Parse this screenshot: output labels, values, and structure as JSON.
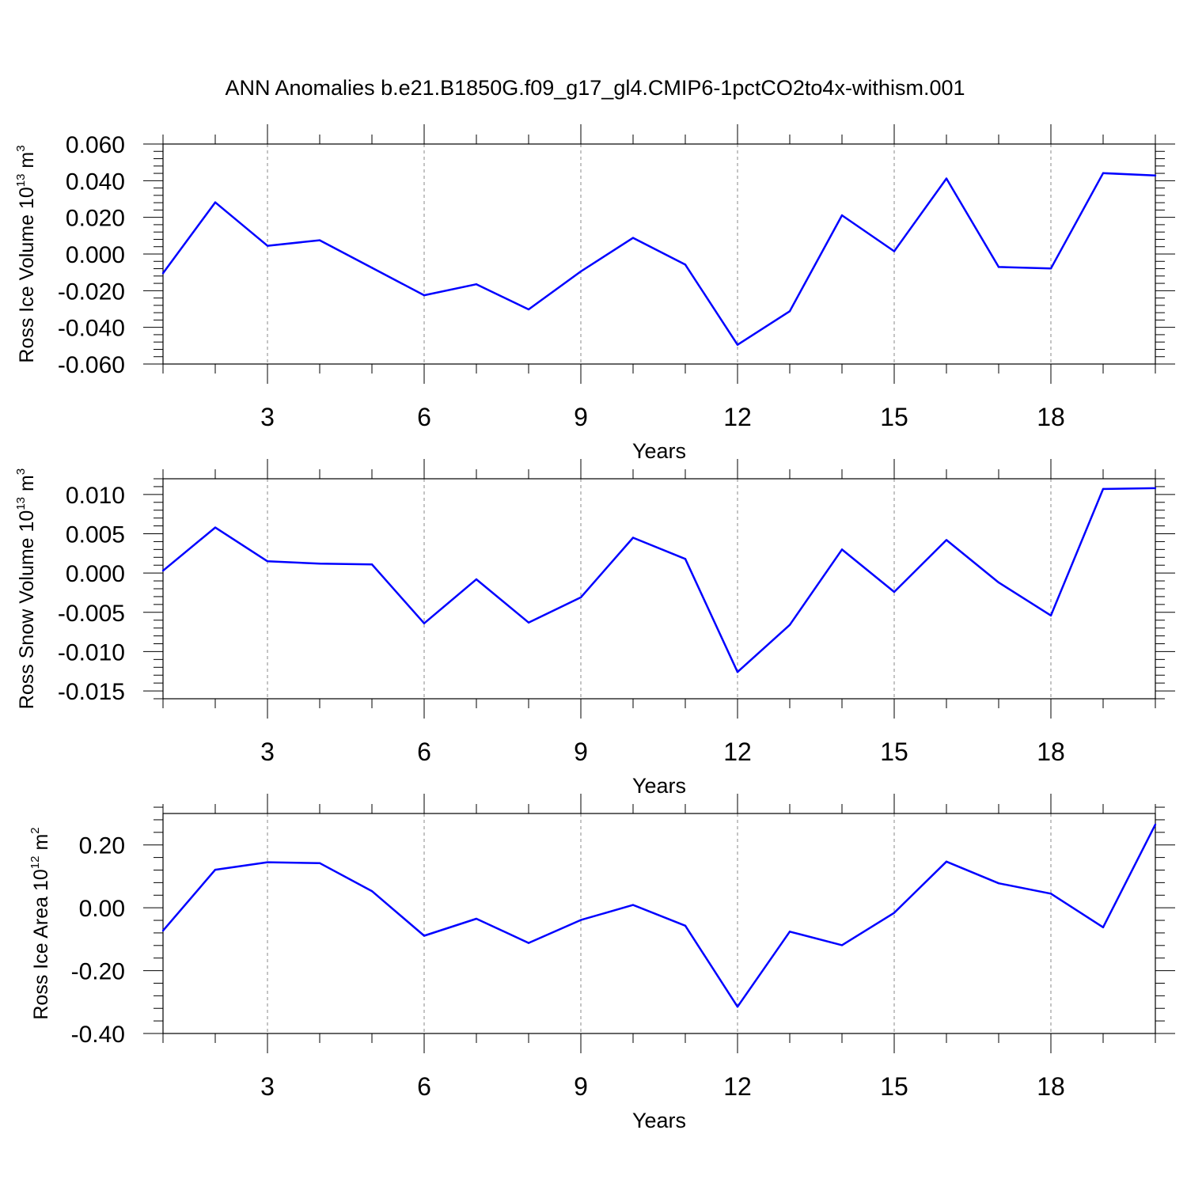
{
  "title": "ANN Anomalies b.e21.B1850G.f09_g17_gl4.CMIP6-1pctCO2to4x-withism.001",
  "colors": {
    "line": "#0000ff",
    "axis": "#000000",
    "grid": "#888888"
  },
  "chart_data": [
    {
      "type": "line",
      "ylabel": {
        "main": "Ross Ice Volume 10",
        "exponent": "13",
        "unit": "m",
        "unit_exponent": "3"
      },
      "xlabel": "Years",
      "xlim": [
        1,
        20
      ],
      "ylim": [
        -0.06,
        0.06
      ],
      "grid": "vertical dashed at major ticks",
      "yticks": [
        {
          "value": 0.06,
          "label": "0.060"
        },
        {
          "value": 0.04,
          "label": "0.040"
        },
        {
          "value": 0.02,
          "label": "0.020"
        },
        {
          "value": 0.0,
          "label": "0.000"
        },
        {
          "value": -0.02,
          "label": "-0.020"
        },
        {
          "value": -0.04,
          "label": "-0.040"
        },
        {
          "value": -0.06,
          "label": "-0.060"
        }
      ],
      "xticks": [
        3,
        6,
        9,
        12,
        15,
        18
      ],
      "series": [
        {
          "x": [
            1,
            2,
            3,
            4,
            5,
            6,
            7,
            8,
            9,
            10,
            11,
            12,
            13,
            14,
            15,
            16,
            17,
            18,
            19,
            20
          ],
          "values": [
            -0.0105,
            0.0282,
            0.0045,
            0.0075,
            -0.0075,
            -0.0225,
            -0.0165,
            -0.0302,
            -0.0095,
            0.0088,
            -0.0058,
            -0.0495,
            -0.0312,
            0.0211,
            0.0015,
            0.0412,
            -0.0071,
            -0.0079,
            0.0441,
            0.0428
          ]
        }
      ]
    },
    {
      "type": "line",
      "ylabel": {
        "main": "Ross Snow Volume 10",
        "exponent": "13",
        "unit": "m",
        "unit_exponent": "3"
      },
      "xlabel": "Years",
      "xlim": [
        1,
        20
      ],
      "ylim": [
        -0.016,
        0.012
      ],
      "grid": "vertical dashed at major ticks",
      "yticks": [
        {
          "value": 0.01,
          "label": "0.010"
        },
        {
          "value": 0.005,
          "label": "0.005"
        },
        {
          "value": 0.0,
          "label": "0.000"
        },
        {
          "value": -0.005,
          "label": "-0.005"
        },
        {
          "value": -0.01,
          "label": "-0.010"
        },
        {
          "value": -0.015,
          "label": "-0.015"
        }
      ],
      "xticks": [
        3,
        6,
        9,
        12,
        15,
        18
      ],
      "series": [
        {
          "x": [
            1,
            2,
            3,
            4,
            5,
            6,
            7,
            8,
            9,
            10,
            11,
            12,
            13,
            14,
            15,
            16,
            17,
            18,
            19,
            20
          ],
          "values": [
            0.0003,
            0.0058,
            0.0015,
            0.0012,
            0.0011,
            -0.0064,
            -0.0008,
            -0.0063,
            -0.0031,
            0.0045,
            0.0018,
            -0.0126,
            -0.0066,
            0.003,
            -0.0024,
            0.0042,
            -0.0012,
            -0.0054,
            0.0107,
            0.0108
          ]
        }
      ]
    },
    {
      "type": "line",
      "ylabel": {
        "main": "Ross Ice Area 10",
        "exponent": "12",
        "unit": "m",
        "unit_exponent": "2"
      },
      "xlabel": "Years",
      "xlim": [
        1,
        20
      ],
      "ylim": [
        -0.4,
        0.3
      ],
      "grid": "vertical dashed at major ticks",
      "yticks": [
        {
          "value": 0.2,
          "label": "0.20"
        },
        {
          "value": 0.0,
          "label": "0.00"
        },
        {
          "value": -0.2,
          "label": "-0.20"
        },
        {
          "value": -0.4,
          "label": "-0.40"
        }
      ],
      "xticks": [
        3,
        6,
        9,
        12,
        15,
        18
      ],
      "series": [
        {
          "x": [
            1,
            2,
            3,
            4,
            5,
            6,
            7,
            8,
            9,
            10,
            11,
            12,
            13,
            14,
            15,
            16,
            17,
            18,
            19,
            20
          ],
          "values": [
            -0.073,
            0.121,
            0.145,
            0.142,
            0.053,
            -0.089,
            -0.035,
            -0.112,
            -0.039,
            0.009,
            -0.057,
            -0.315,
            -0.076,
            -0.119,
            -0.016,
            0.147,
            0.078,
            0.045,
            -0.062,
            0.265
          ]
        }
      ]
    }
  ]
}
